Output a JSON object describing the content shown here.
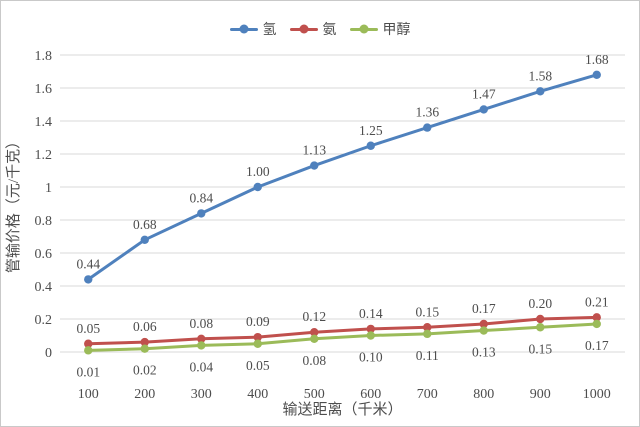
{
  "chart_data": {
    "type": "line",
    "title": "",
    "x": [
      100,
      200,
      300,
      400,
      500,
      600,
      700,
      800,
      900,
      1000
    ],
    "x_tick_labels": [
      "100",
      "200",
      "300",
      "400",
      "500",
      "600",
      "700",
      "800",
      "900",
      "1000"
    ],
    "xlabel": "输送距离（千米）",
    "ylabel": "管输价格（元/千克）",
    "ylim": [
      0,
      1.8
    ],
    "yticks": [
      0,
      0.2,
      0.4,
      0.6,
      0.8,
      1,
      1.2,
      1.4,
      1.6,
      1.8
    ],
    "ytick_labels": [
      "0",
      "0.2",
      "0.4",
      "0.6",
      "0.8",
      "1",
      "1.2",
      "1.4",
      "1.6",
      "1.8"
    ],
    "grid": true,
    "legend_position": "top-center",
    "marker": "circle",
    "series": [
      {
        "name": "氢",
        "color": "#4F81BD",
        "values": [
          0.44,
          0.68,
          0.84,
          1.0,
          1.13,
          1.25,
          1.36,
          1.47,
          1.58,
          1.68
        ],
        "labels": [
          "0.44",
          "0.68",
          "0.84",
          "1.00",
          "1.13",
          "1.25",
          "1.36",
          "1.47",
          "1.58",
          "1.68"
        ],
        "label_position": "above"
      },
      {
        "name": "氨",
        "color": "#C0504D",
        "values": [
          0.05,
          0.06,
          0.08,
          0.09,
          0.12,
          0.14,
          0.15,
          0.17,
          0.2,
          0.21
        ],
        "labels": [
          "0.05",
          "0.06",
          "0.08",
          "0.09",
          "0.12",
          "0.14",
          "0.15",
          "0.17",
          "0.20",
          "0.21"
        ],
        "label_position": "above"
      },
      {
        "name": "甲醇",
        "color": "#9BBB59",
        "values": [
          0.01,
          0.02,
          0.04,
          0.05,
          0.08,
          0.1,
          0.11,
          0.13,
          0.15,
          0.17
        ],
        "labels": [
          "0.01",
          "0.02",
          "0.04",
          "0.05",
          "0.08",
          "0.10",
          "0.11",
          "0.13",
          "0.15",
          "0.17"
        ],
        "label_position": "below"
      }
    ]
  },
  "colors": {
    "grid": "#D9D9D9",
    "text": "#4d4d4d",
    "background": "#FFFFFF",
    "border": "#C9C9C9"
  }
}
